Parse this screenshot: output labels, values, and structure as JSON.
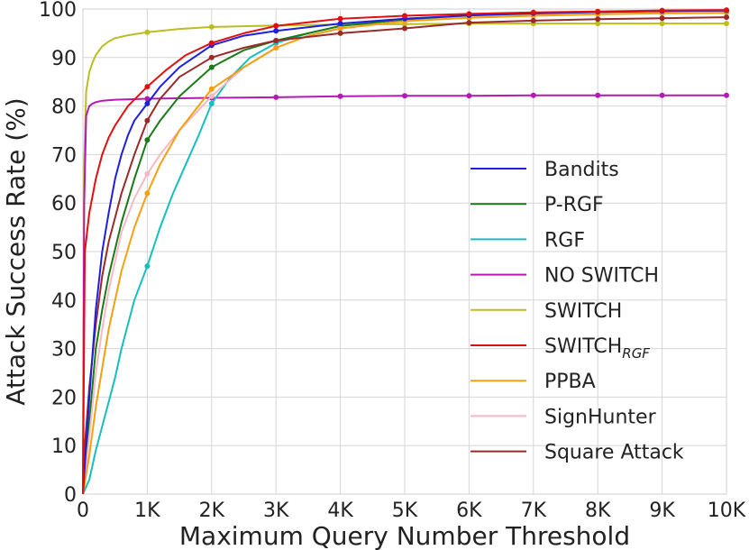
{
  "chart_data": {
    "type": "line",
    "title": "",
    "xlabel": "Maximum Query Number Threshold",
    "ylabel": "Attack Success Rate (%)",
    "xlim": [
      0,
      10000
    ],
    "ylim": [
      0,
      100
    ],
    "xticks": [
      {
        "value": 0,
        "label": "0"
      },
      {
        "value": 1000,
        "label": "1K"
      },
      {
        "value": 2000,
        "label": "2K"
      },
      {
        "value": 3000,
        "label": "3K"
      },
      {
        "value": 4000,
        "label": "4K"
      },
      {
        "value": 5000,
        "label": "5K"
      },
      {
        "value": 6000,
        "label": "6K"
      },
      {
        "value": 7000,
        "label": "7K"
      },
      {
        "value": 8000,
        "label": "8K"
      },
      {
        "value": 9000,
        "label": "9K"
      },
      {
        "value": 10000,
        "label": "10K"
      }
    ],
    "yticks": [
      {
        "value": 0,
        "label": "0"
      },
      {
        "value": 10,
        "label": "10"
      },
      {
        "value": 20,
        "label": "20"
      },
      {
        "value": 30,
        "label": "30"
      },
      {
        "value": 40,
        "label": "40"
      },
      {
        "value": 50,
        "label": "50"
      },
      {
        "value": 60,
        "label": "60"
      },
      {
        "value": 70,
        "label": "70"
      },
      {
        "value": 80,
        "label": "80"
      },
      {
        "value": 90,
        "label": "90"
      },
      {
        "value": 100,
        "label": "100"
      }
    ],
    "grid": true,
    "legend_position": "center-right",
    "series": [
      {
        "name": "Bandits",
        "color": "#1f1fdc",
        "x": [
          0,
          100,
          200,
          300,
          400,
          500,
          600,
          700,
          800,
          1000,
          1200,
          1500,
          2000,
          2500,
          3000,
          4000,
          5000,
          6000,
          7000,
          8000,
          9000,
          10000
        ],
        "y": [
          0,
          20,
          38,
          50,
          58,
          65,
          70,
          74,
          77,
          80.5,
          84,
          88,
          92.5,
          94.5,
          95.5,
          97,
          98,
          98.7,
          99.1,
          99.4,
          99.6,
          99.7
        ],
        "markers_x": [
          1000,
          2000,
          3000,
          4000,
          5000,
          6000,
          7000,
          8000,
          9000,
          10000
        ]
      },
      {
        "name": "P-RGF",
        "color": "#1a7a1a",
        "x": [
          0,
          100,
          200,
          300,
          400,
          600,
          800,
          1000,
          1200,
          1500,
          2000,
          2500,
          3000,
          4000,
          5000,
          6000,
          7000,
          8000,
          9000,
          10000
        ],
        "y": [
          0,
          15,
          30,
          38,
          45,
          56,
          65,
          73,
          77,
          82,
          88,
          91.5,
          93.5,
          96.5,
          97.8,
          98.5,
          98.9,
          99.2,
          99.4,
          99.5
        ],
        "markers_x": [
          1000,
          2000,
          3000,
          4000,
          5000,
          6000,
          7000,
          8000,
          9000,
          10000
        ]
      },
      {
        "name": "RGF",
        "color": "#17bebe",
        "x": [
          0,
          100,
          200,
          300,
          400,
          500,
          600,
          800,
          1000,
          1200,
          1400,
          1600,
          1800,
          2000,
          2300,
          2600,
          3000,
          3500,
          4000,
          5000,
          6000,
          7000,
          8000,
          9000,
          10000
        ],
        "y": [
          0,
          3,
          9,
          14,
          19,
          24,
          30,
          40,
          47,
          55,
          62,
          68,
          74,
          80.5,
          86,
          90,
          93,
          95,
          96.5,
          98,
          98.6,
          99,
          99.2,
          99.4,
          99.5
        ],
        "markers_x": [
          1000,
          2000,
          3000,
          4000,
          5000,
          6000,
          7000,
          8000,
          9000,
          10000
        ]
      },
      {
        "name": "NO SWITCH",
        "color": "#b31ab3",
        "x": [
          0,
          20,
          50,
          100,
          150,
          200,
          300,
          500,
          1000,
          2000,
          3000,
          4000,
          5000,
          6000,
          7000,
          8000,
          9000,
          10000
        ],
        "y": [
          0,
          60,
          78,
          80,
          80.5,
          80.8,
          81.1,
          81.3,
          81.5,
          81.7,
          81.8,
          82,
          82.1,
          82.1,
          82.2,
          82.2,
          82.2,
          82.2
        ],
        "markers_x": [
          1000,
          2000,
          3000,
          4000,
          5000,
          6000,
          7000,
          8000,
          9000,
          10000
        ]
      },
      {
        "name": "SWITCH",
        "color": "#bcbd22",
        "x": [
          0,
          20,
          50,
          100,
          150,
          200,
          300,
          400,
          500,
          700,
          1000,
          1500,
          2000,
          3000,
          4000,
          5000,
          6000,
          7000,
          8000,
          9000,
          10000
        ],
        "y": [
          0,
          68,
          83,
          87,
          89,
          90.5,
          92.3,
          93.3,
          94,
          94.6,
          95.2,
          95.9,
          96.3,
          96.6,
          96.8,
          96.9,
          97,
          97,
          97,
          97,
          97
        ],
        "markers_x": [
          1000,
          2000,
          3000,
          4000,
          5000,
          6000,
          7000,
          8000,
          9000,
          10000
        ]
      },
      {
        "name": "SWITCH",
        "name_sub": "RGF",
        "color": "#e01010",
        "x": [
          0,
          30,
          100,
          200,
          300,
          400,
          500,
          700,
          1000,
          1300,
          1600,
          2000,
          2500,
          3000,
          4000,
          5000,
          6000,
          7000,
          8000,
          9000,
          10000
        ],
        "y": [
          0,
          50,
          58,
          65,
          70,
          73.5,
          76,
          80,
          84,
          87.5,
          90.5,
          93,
          95,
          96.5,
          98,
          98.6,
          99,
          99.3,
          99.5,
          99.7,
          99.8
        ],
        "markers_x": [
          1000,
          2000,
          3000,
          4000,
          5000,
          6000,
          7000,
          8000,
          9000,
          10000
        ]
      },
      {
        "name": "PPBA",
        "color": "#f5a011",
        "x": [
          0,
          100,
          200,
          300,
          400,
          600,
          800,
          1000,
          1200,
          1500,
          2000,
          2500,
          3000,
          3500,
          4000,
          5000,
          6000,
          7000,
          8000,
          9000,
          10000
        ],
        "y": [
          0,
          8,
          18,
          26,
          34,
          46,
          55,
          62,
          68,
          75,
          83.5,
          88,
          92,
          94.5,
          96,
          97.5,
          98.2,
          98.6,
          98.9,
          99.1,
          99.2
        ],
        "markers_x": [
          1000,
          2000,
          3000,
          4000,
          5000,
          6000,
          7000,
          8000,
          9000,
          10000
        ]
      },
      {
        "name": "SignHunter",
        "color": "#f7b8c4",
        "x": [
          0,
          100,
          200,
          300,
          400,
          600,
          800,
          1000,
          1200,
          1500,
          2000,
          2500,
          3000,
          3500,
          4000,
          5000,
          6000,
          7000,
          8000,
          9000,
          10000
        ],
        "y": [
          0,
          12,
          25,
          34,
          42,
          54,
          61,
          66,
          70,
          75,
          82,
          88,
          92,
          94.5,
          96,
          97.5,
          98.3,
          98.7,
          99,
          99.2,
          99.3
        ],
        "markers_x": [
          1000,
          2000,
          3000,
          4000,
          5000,
          6000,
          7000,
          8000,
          9000,
          10000
        ]
      },
      {
        "name": "Square Attack",
        "color": "#9a2a2a",
        "x": [
          0,
          30,
          100,
          200,
          300,
          400,
          600,
          800,
          1000,
          1200,
          1500,
          2000,
          2500,
          3000,
          4000,
          5000,
          6000,
          7000,
          8000,
          9000,
          10000
        ],
        "y": [
          0,
          10,
          22,
          35,
          45,
          52,
          62,
          70,
          77,
          81.5,
          86,
          90,
          92,
          93.5,
          95,
          96,
          97.2,
          97.6,
          97.9,
          98.1,
          98.3
        ],
        "markers_x": [
          1000,
          2000,
          3000,
          4000,
          5000,
          6000,
          7000,
          8000,
          9000,
          10000
        ]
      }
    ]
  }
}
